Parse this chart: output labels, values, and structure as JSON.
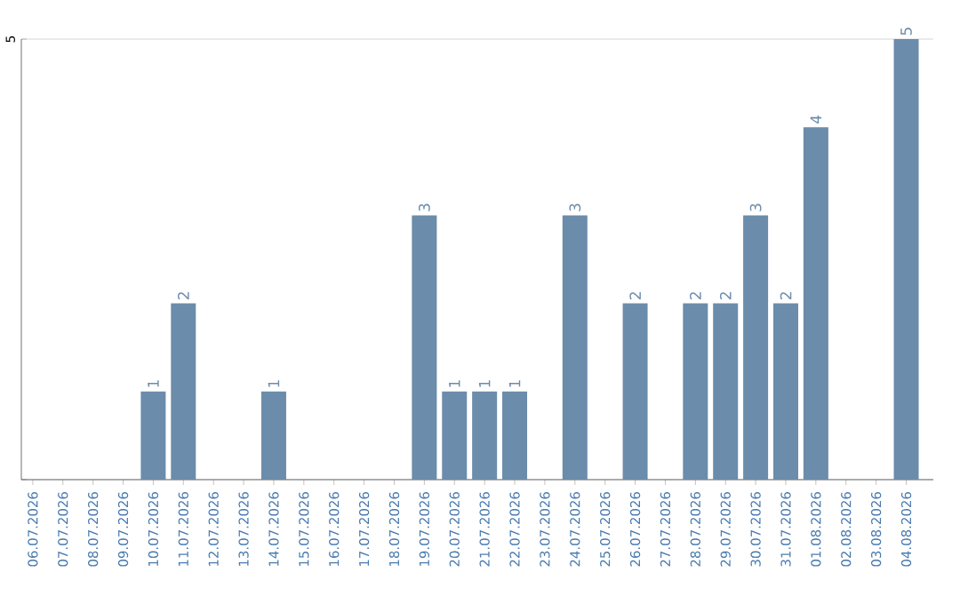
{
  "chart_data": {
    "type": "bar",
    "categories": [
      "06.07.2026",
      "07.07.2026",
      "08.07.2026",
      "09.07.2026",
      "10.07.2026",
      "11.07.2026",
      "12.07.2026",
      "13.07.2026",
      "14.07.2026",
      "15.07.2026",
      "16.07.2026",
      "17.07.2026",
      "18.07.2026",
      "19.07.2026",
      "20.07.2026",
      "21.07.2026",
      "22.07.2026",
      "23.07.2026",
      "24.07.2026",
      "25.07.2026",
      "26.07.2026",
      "27.07.2026",
      "28.07.2026",
      "29.07.2026",
      "30.07.2026",
      "31.07.2026",
      "01.08.2026",
      "02.08.2026",
      "03.08.2026",
      "04.08.2026"
    ],
    "values": [
      0,
      0,
      0,
      0,
      1,
      2,
      0,
      0,
      1,
      0,
      0,
      0,
      0,
      3,
      1,
      1,
      1,
      0,
      3,
      0,
      2,
      0,
      2,
      2,
      3,
      2,
      4,
      0,
      0,
      5
    ],
    "value_labels": [
      null,
      null,
      null,
      null,
      "1",
      "2",
      null,
      null,
      "1",
      null,
      null,
      null,
      null,
      "3",
      "1",
      "1",
      "1",
      null,
      "3",
      null,
      "2",
      null,
      "2",
      "2",
      "3",
      "2",
      "4",
      null,
      null,
      "5"
    ],
    "color": "#6b8cab",
    "ylim": [
      0,
      5
    ],
    "yticks": [
      {
        "value": 0,
        "label": null
      },
      5
    ],
    "grid": "y"
  }
}
